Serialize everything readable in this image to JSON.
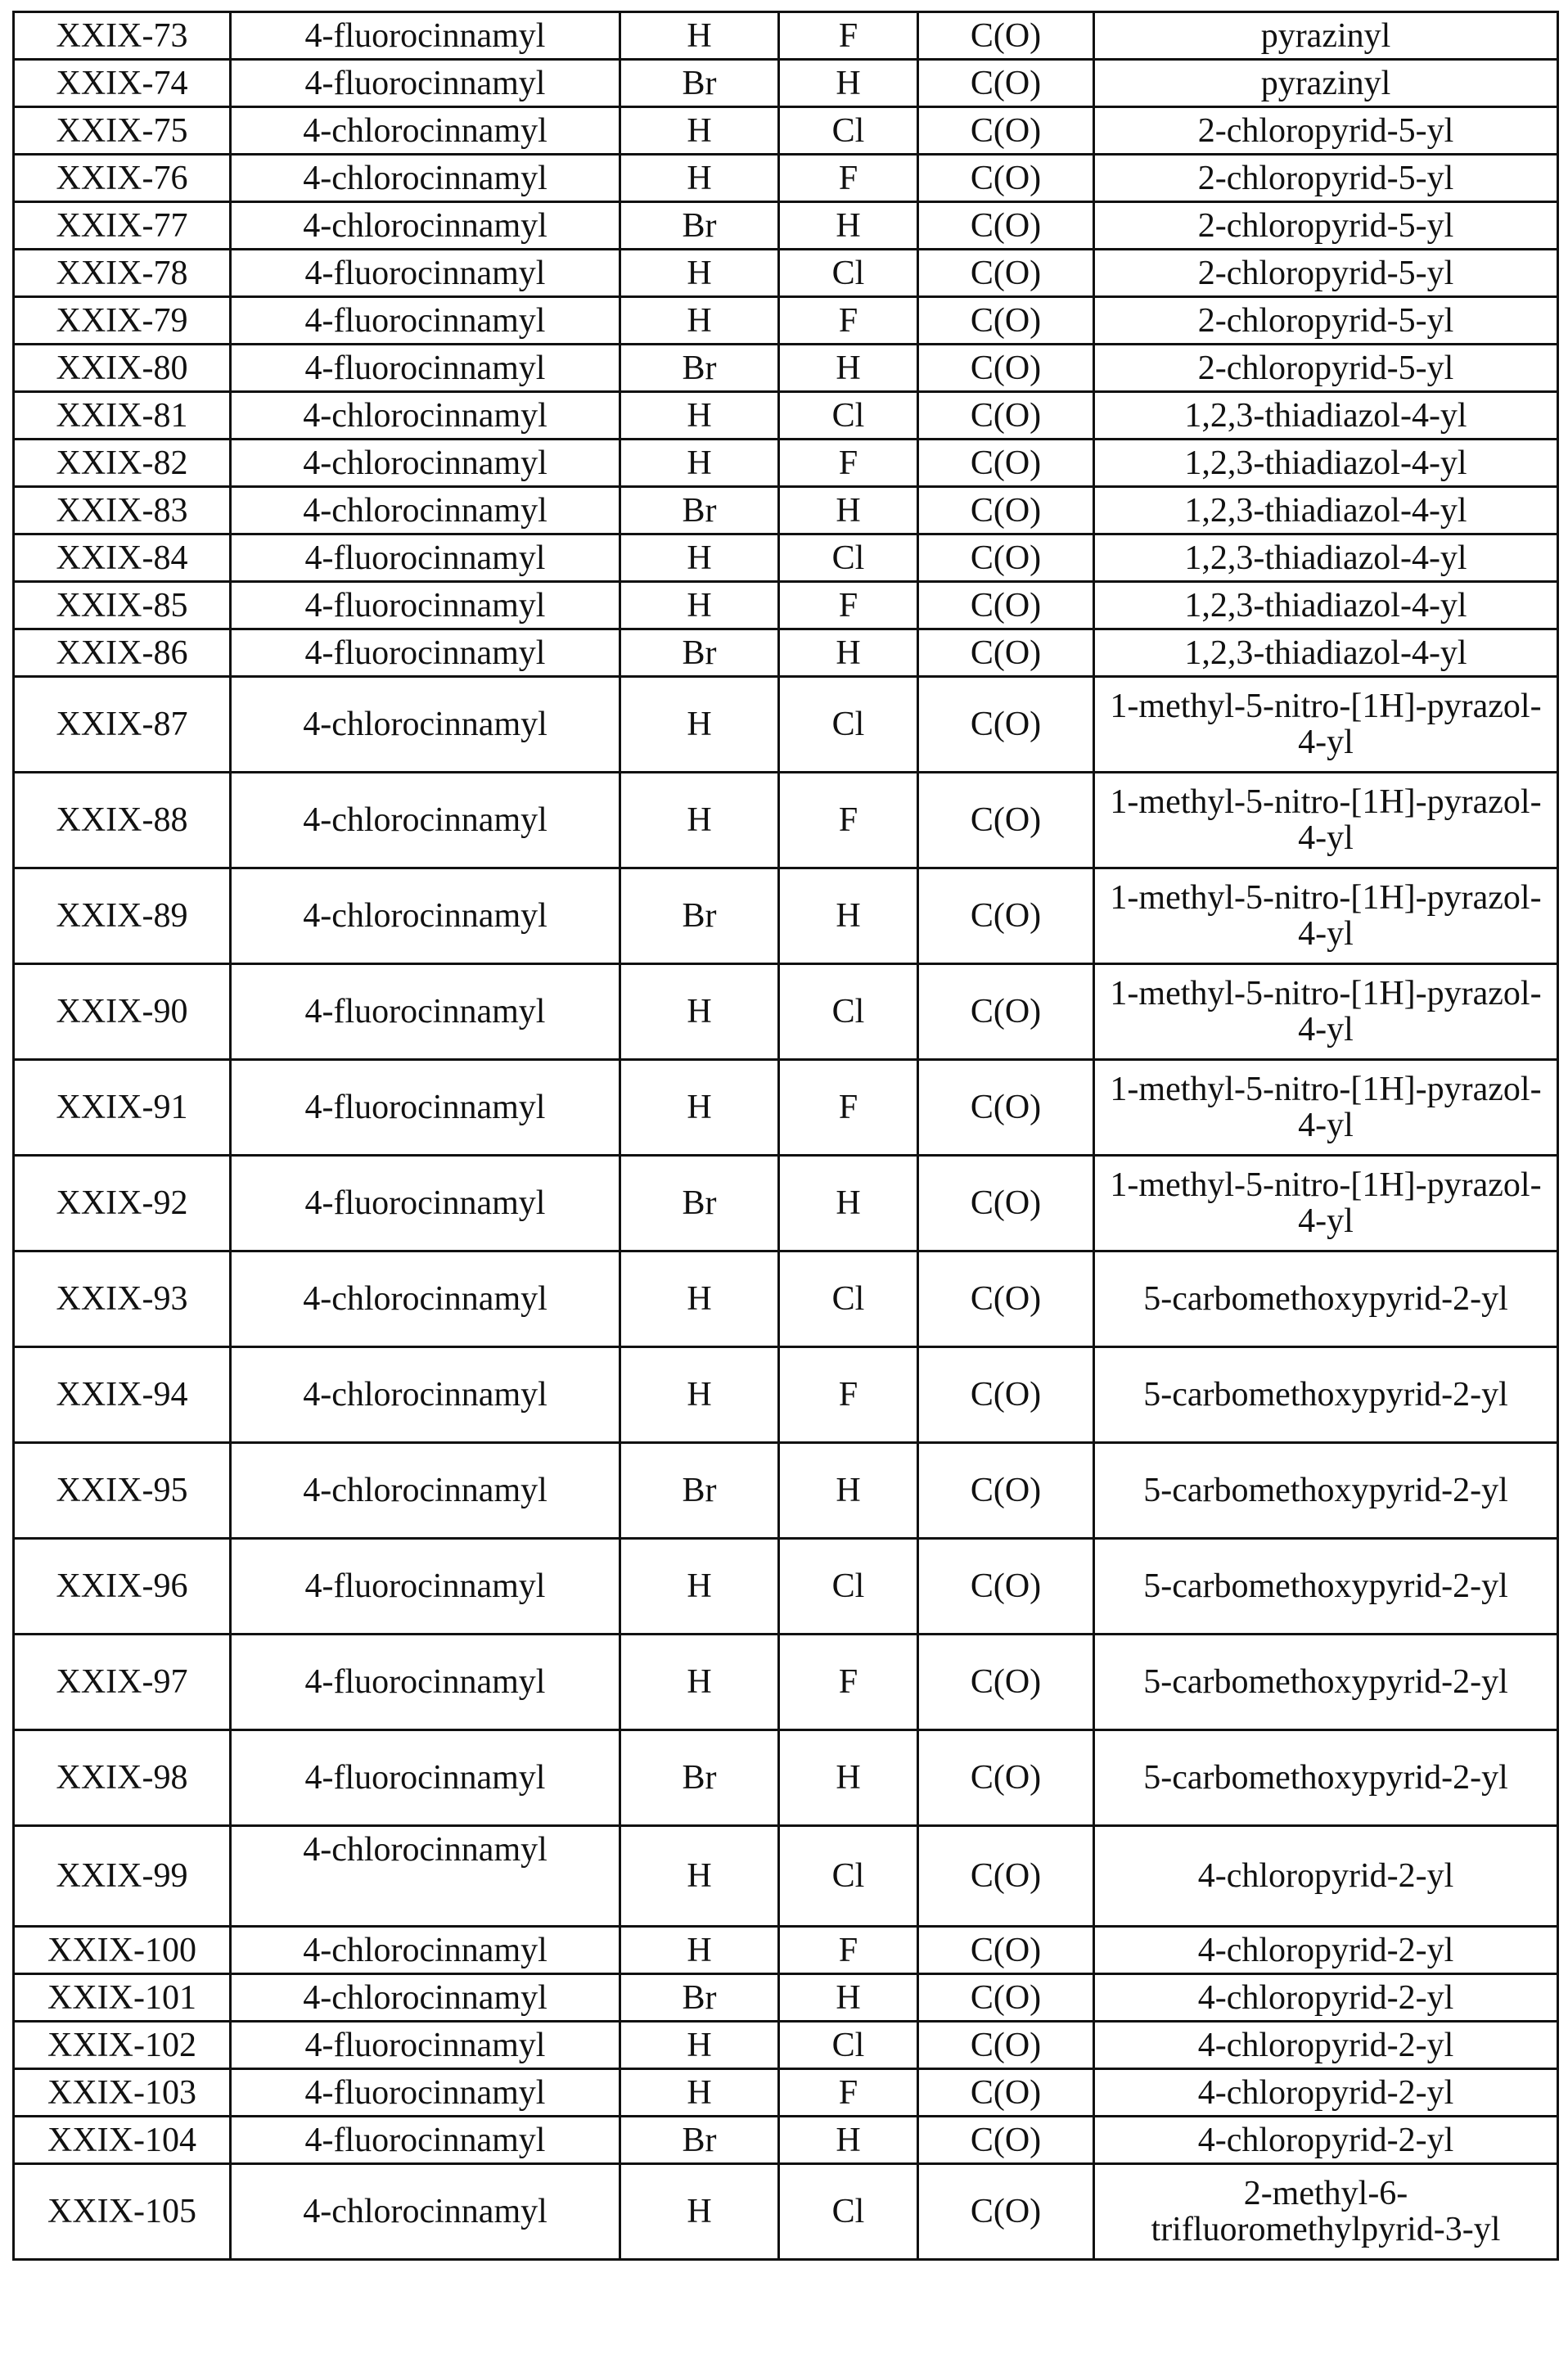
{
  "table": {
    "rows": [
      [
        "XXIX-73",
        "4-fluorocinnamyl",
        "H",
        "F",
        "C(O)",
        "pyrazinyl"
      ],
      [
        "XXIX-74",
        "4-fluorocinnamyl",
        "Br",
        "H",
        "C(O)",
        "pyrazinyl"
      ],
      [
        "XXIX-75",
        "4-chlorocinnamyl",
        "H",
        "Cl",
        "C(O)",
        "2-chloropyrid-5-yl"
      ],
      [
        "XXIX-76",
        "4-chlorocinnamyl",
        "H",
        "F",
        "C(O)",
        "2-chloropyrid-5-yl"
      ],
      [
        "XXIX-77",
        "4-chlorocinnamyl",
        "Br",
        "H",
        "C(O)",
        "2-chloropyrid-5-yl"
      ],
      [
        "XXIX-78",
        "4-fluorocinnamyl",
        "H",
        "Cl",
        "C(O)",
        "2-chloropyrid-5-yl"
      ],
      [
        "XXIX-79",
        "4-fluorocinnamyl",
        "H",
        "F",
        "C(O)",
        "2-chloropyrid-5-yl"
      ],
      [
        "XXIX-80",
        "4-fluorocinnamyl",
        "Br",
        "H",
        "C(O)",
        "2-chloropyrid-5-yl"
      ],
      [
        "XXIX-81",
        "4-chlorocinnamyl",
        "H",
        "Cl",
        "C(O)",
        "1,2,3-thiadiazol-4-yl"
      ],
      [
        "XXIX-82",
        "4-chlorocinnamyl",
        "H",
        "F",
        "C(O)",
        "1,2,3-thiadiazol-4-yl"
      ],
      [
        "XXIX-83",
        "4-chlorocinnamyl",
        "Br",
        "H",
        "C(O)",
        "1,2,3-thiadiazol-4-yl"
      ],
      [
        "XXIX-84",
        "4-fluorocinnamyl",
        "H",
        "Cl",
        "C(O)",
        "1,2,3-thiadiazol-4-yl"
      ],
      [
        "XXIX-85",
        "4-fluorocinnamyl",
        "H",
        "F",
        "C(O)",
        "1,2,3-thiadiazol-4-yl"
      ],
      [
        "XXIX-86",
        "4-fluorocinnamyl",
        "Br",
        "H",
        "C(O)",
        "1,2,3-thiadiazol-4-yl"
      ],
      [
        "XXIX-87",
        "4-chlorocinnamyl",
        "H",
        "Cl",
        "C(O)",
        "1-methyl-5-nitro-[1H]-pyrazol-4-yl"
      ],
      [
        "XXIX-88",
        "4-chlorocinnamyl",
        "H",
        "F",
        "C(O)",
        "1-methyl-5-nitro-[1H]-pyrazol-4-yl"
      ],
      [
        "XXIX-89",
        "4-chlorocinnamyl",
        "Br",
        "H",
        "C(O)",
        "1-methyl-5-nitro-[1H]-pyrazol-4-yl"
      ],
      [
        "XXIX-90",
        "4-fluorocinnamyl",
        "H",
        "Cl",
        "C(O)",
        "1-methyl-5-nitro-[1H]-pyrazol-4-yl"
      ],
      [
        "XXIX-91",
        "4-fluorocinnamyl",
        "H",
        "F",
        "C(O)",
        "1-methyl-5-nitro-[1H]-pyrazol-4-yl"
      ],
      [
        "XXIX-92",
        "4-fluorocinnamyl",
        "Br",
        "H",
        "C(O)",
        "1-methyl-5-nitro-[1H]-pyrazol-4-yl"
      ],
      [
        "XXIX-93",
        "4-chlorocinnamyl",
        "H",
        "Cl",
        "C(O)",
        "5-carbomethoxypyrid-2-yl"
      ],
      [
        "XXIX-94",
        "4-chlorocinnamyl",
        "H",
        "F",
        "C(O)",
        "5-carbomethoxypyrid-2-yl"
      ],
      [
        "XXIX-95",
        "4-chlorocinnamyl",
        "Br",
        "H",
        "C(O)",
        "5-carbomethoxypyrid-2-yl"
      ],
      [
        "XXIX-96",
        "4-fluorocinnamyl",
        "H",
        "Cl",
        "C(O)",
        "5-carbomethoxypyrid-2-yl"
      ],
      [
        "XXIX-97",
        "4-fluorocinnamyl",
        "H",
        "F",
        "C(O)",
        "5-carbomethoxypyrid-2-yl"
      ],
      [
        "XXIX-98",
        "4-fluorocinnamyl",
        "Br",
        "H",
        "C(O)",
        "5-carbomethoxypyrid-2-yl"
      ],
      [
        "XXIX-99",
        "4-chlorocinnamyl",
        "H",
        "Cl",
        "C(O)",
        "4-chloropyrid-2-yl"
      ],
      [
        "XXIX-100",
        "4-chlorocinnamyl",
        "H",
        "F",
        "C(O)",
        "4-chloropyrid-2-yl"
      ],
      [
        "XXIX-101",
        "4-chlorocinnamyl",
        "Br",
        "H",
        "C(O)",
        "4-chloropyrid-2-yl"
      ],
      [
        "XXIX-102",
        "4-fluorocinnamyl",
        "H",
        "Cl",
        "C(O)",
        "4-chloropyrid-2-yl"
      ],
      [
        "XXIX-103",
        "4-fluorocinnamyl",
        "H",
        "F",
        "C(O)",
        "4-chloropyrid-2-yl"
      ],
      [
        "XXIX-104",
        "4-fluorocinnamyl",
        "Br",
        "H",
        "C(O)",
        "4-chloropyrid-2-yl"
      ],
      [
        "XXIX-105",
        "4-chlorocinnamyl",
        "H",
        "Cl",
        "C(O)",
        "2-methyl-6-trifluoromethylpyrid-3-yl"
      ]
    ]
  }
}
